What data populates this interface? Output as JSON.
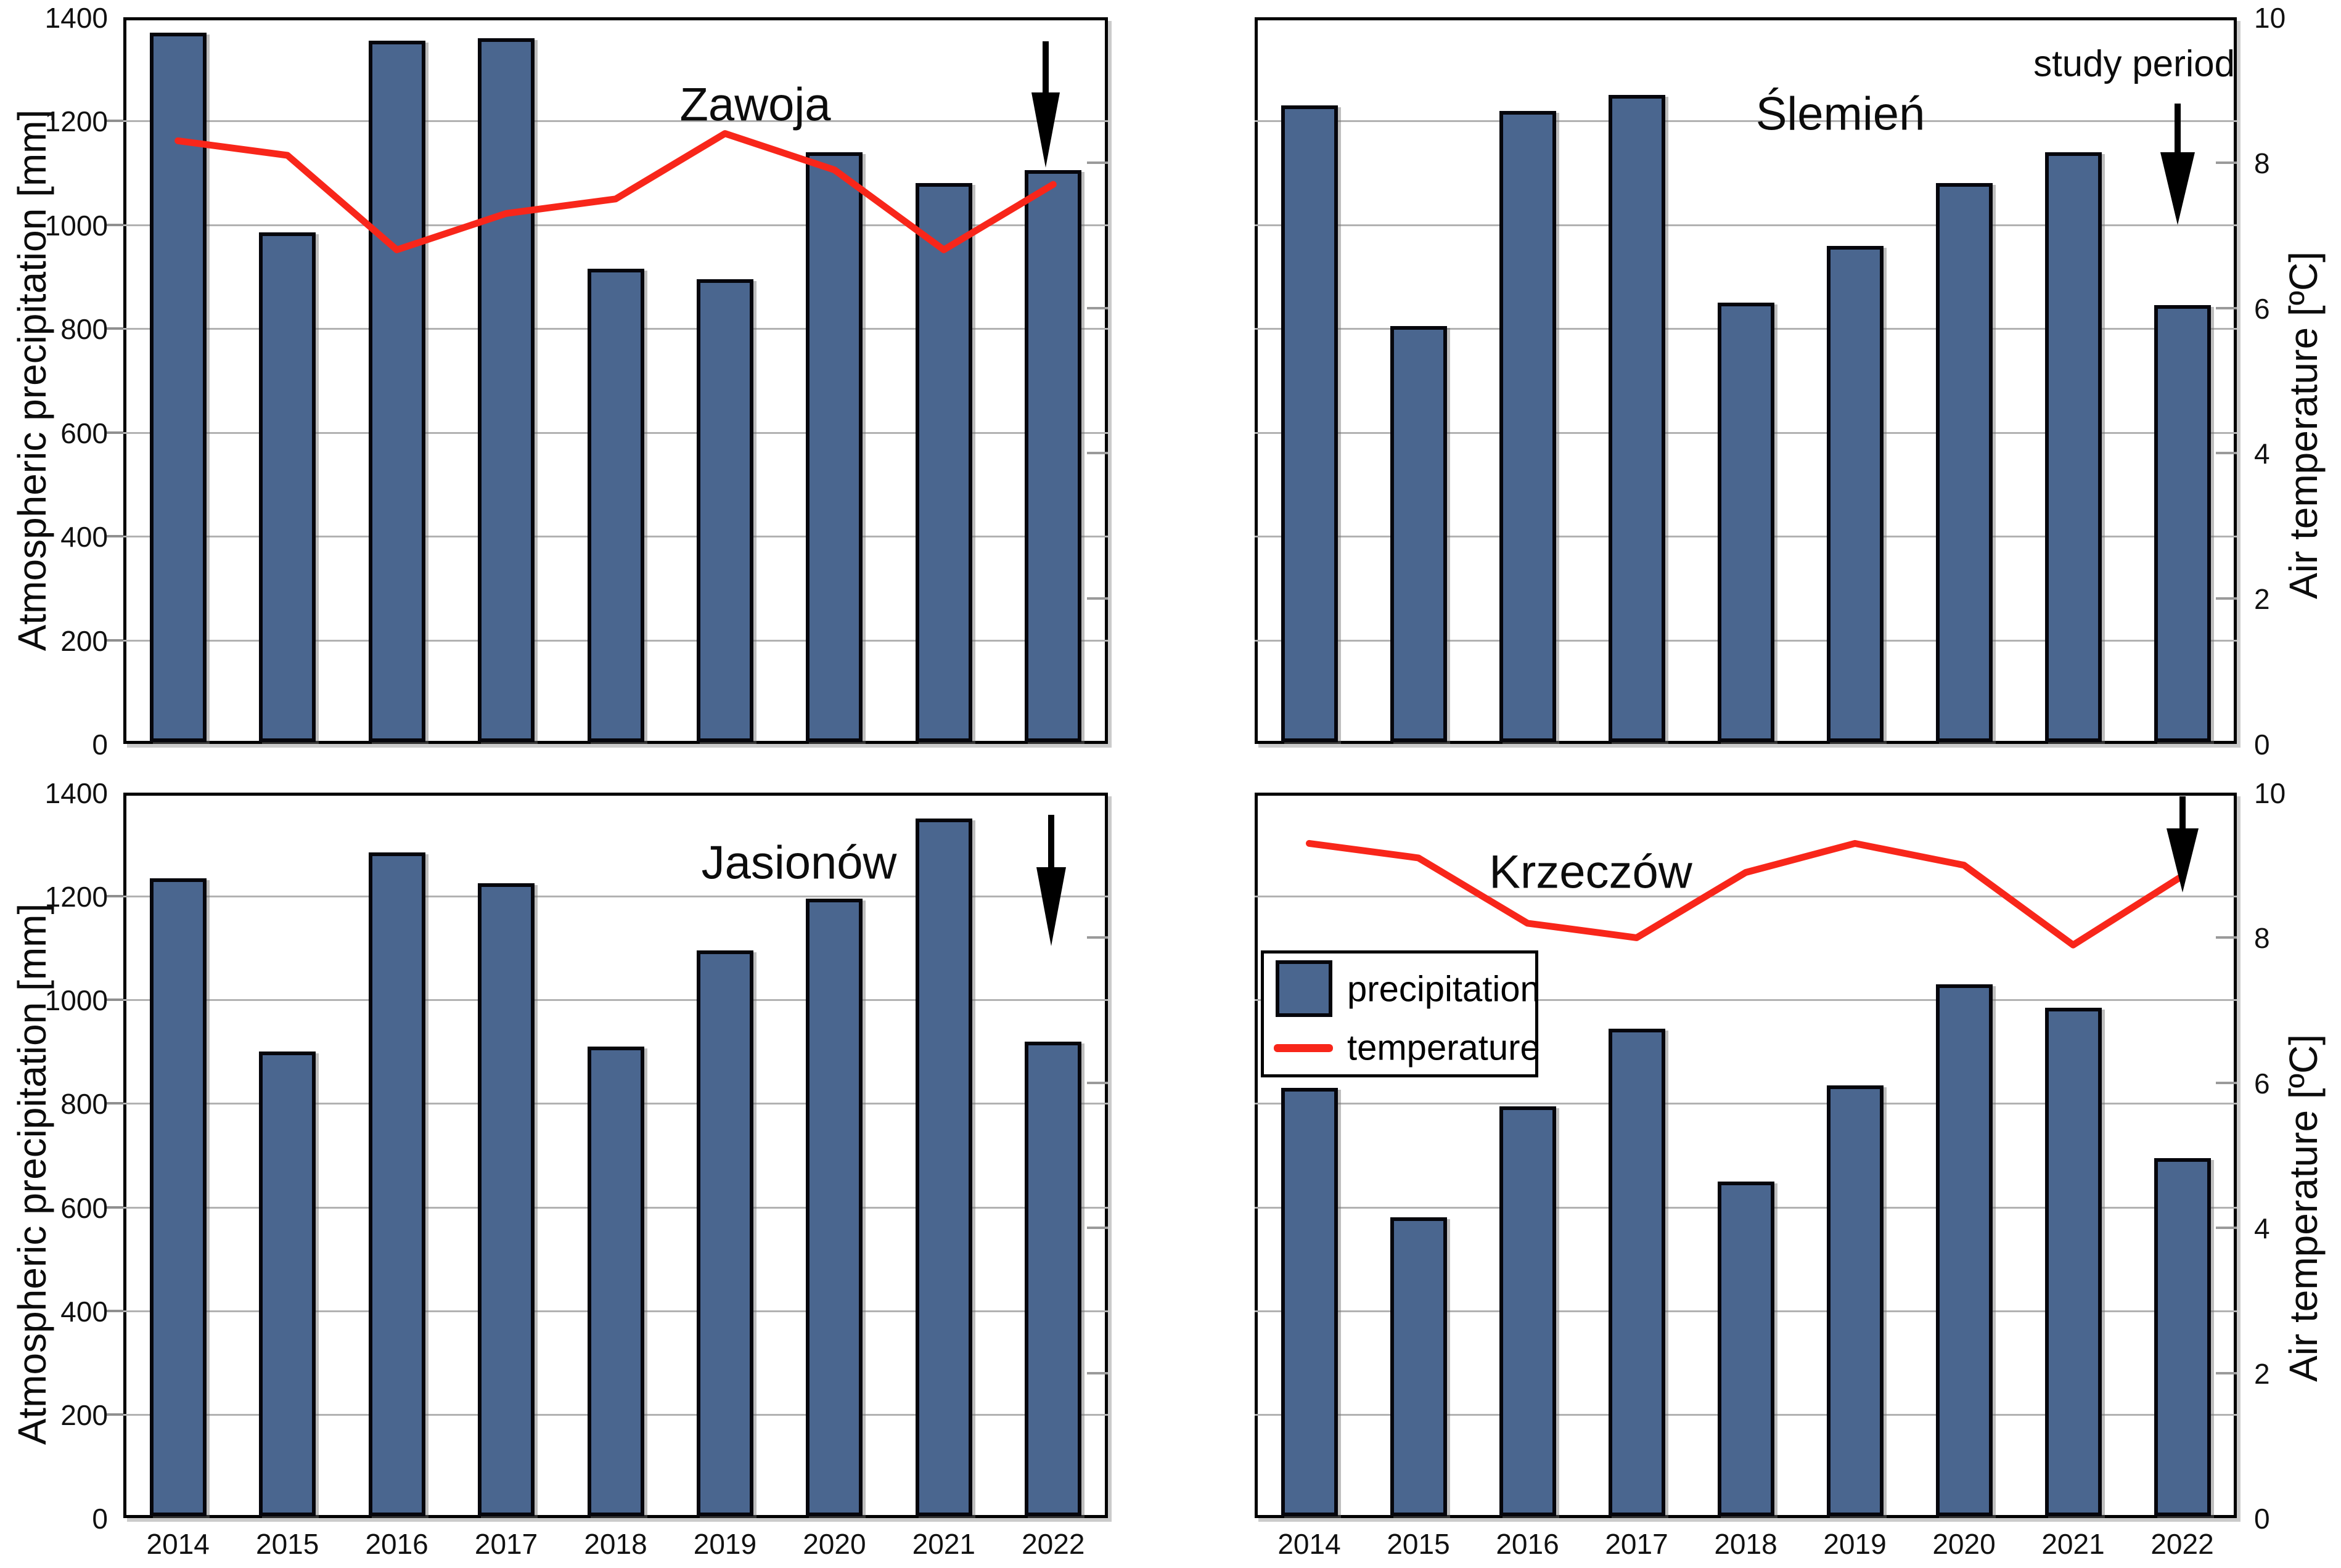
{
  "figure": {
    "background": "#ffffff",
    "bar_color": "#4a668f",
    "bar_border_color": "#06060c",
    "line_color": "#f8261a",
    "grid_color": "#b2b2b2",
    "arrow_color": "#000000",
    "left_axis_title": "Atmospheric precipitation [mm]",
    "right_axis_title": "Air temperature [ºC]",
    "left_ticks": [
      "1400",
      "1200",
      "1000",
      "800",
      "600",
      "400",
      "200",
      "0"
    ],
    "right_ticks": [
      "10",
      "8",
      "6",
      "4",
      "2",
      "0"
    ],
    "legend": {
      "precipitation_label": "precipitation",
      "temperature_label": "temperature"
    }
  },
  "chart_data": [
    {
      "type": "bar",
      "title": "Zawoja",
      "categories": [
        "2014",
        "2015",
        "2016",
        "2017",
        "2018",
        "2019",
        "2020",
        "2021",
        "2022"
      ],
      "series": [
        {
          "name": "precipitation",
          "axis": "left",
          "unit": "mm",
          "values": [
            1370,
            985,
            1355,
            1360,
            915,
            895,
            1140,
            1080,
            1105
          ]
        },
        {
          "name": "temperature",
          "axis": "right",
          "unit": "ºC",
          "values": [
            8.3,
            8.1,
            6.8,
            7.3,
            7.5,
            8.4,
            7.9,
            6.8,
            7.7
          ]
        }
      ],
      "ylabel": "Atmospheric precipitation [mm]",
      "ylim": [
        0,
        1400
      ],
      "y2label": "Air temperature [ºC]",
      "y2lim": [
        0,
        10
      ],
      "grid": true,
      "annotation": "",
      "has_study_arrow": true
    },
    {
      "type": "bar",
      "title": "Ślemień",
      "categories": [
        "2014",
        "2015",
        "2016",
        "2017",
        "2018",
        "2019",
        "2020",
        "2021",
        "2022"
      ],
      "series": [
        {
          "name": "precipitation",
          "axis": "left",
          "unit": "mm",
          "values": [
            1230,
            805,
            1220,
            1250,
            850,
            960,
            1080,
            1140,
            845
          ]
        }
      ],
      "ylabel": "Atmospheric precipitation [mm]",
      "ylim": [
        0,
        1400
      ],
      "y2label": "Air temperature [ºC]",
      "y2lim": [
        0,
        10
      ],
      "grid": true,
      "annotation": "study period",
      "has_study_arrow": true
    },
    {
      "type": "bar",
      "title": "Jasionów",
      "categories": [
        "2014",
        "2015",
        "2016",
        "2017",
        "2018",
        "2019",
        "2020",
        "2021",
        "2022"
      ],
      "series": [
        {
          "name": "precipitation",
          "axis": "left",
          "unit": "mm",
          "values": [
            1235,
            900,
            1285,
            1225,
            910,
            1095,
            1195,
            1350,
            920
          ]
        }
      ],
      "ylabel": "Atmospheric precipitation [mm]",
      "ylim": [
        0,
        1400
      ],
      "y2label": "Air temperature [ºC]",
      "y2lim": [
        0,
        10
      ],
      "grid": true,
      "annotation": "",
      "has_study_arrow": true
    },
    {
      "type": "bar",
      "title": "Krzeczów",
      "categories": [
        "2014",
        "2015",
        "2016",
        "2017",
        "2018",
        "2019",
        "2020",
        "2021",
        "2022"
      ],
      "series": [
        {
          "name": "precipitation",
          "axis": "left",
          "unit": "mm",
          "values": [
            830,
            580,
            795,
            945,
            650,
            835,
            1030,
            985,
            695
          ]
        },
        {
          "name": "temperature",
          "axis": "right",
          "unit": "ºC",
          "values": [
            9.3,
            9.1,
            8.2,
            8.0,
            8.9,
            9.3,
            9.0,
            7.9,
            8.85
          ]
        }
      ],
      "ylabel": "Atmospheric precipitation [mm]",
      "ylim": [
        0,
        1400
      ],
      "y2label": "Air temperature [ºC]",
      "y2lim": [
        0,
        10
      ],
      "grid": true,
      "annotation": "",
      "has_study_arrow": true,
      "has_legend": true
    }
  ]
}
